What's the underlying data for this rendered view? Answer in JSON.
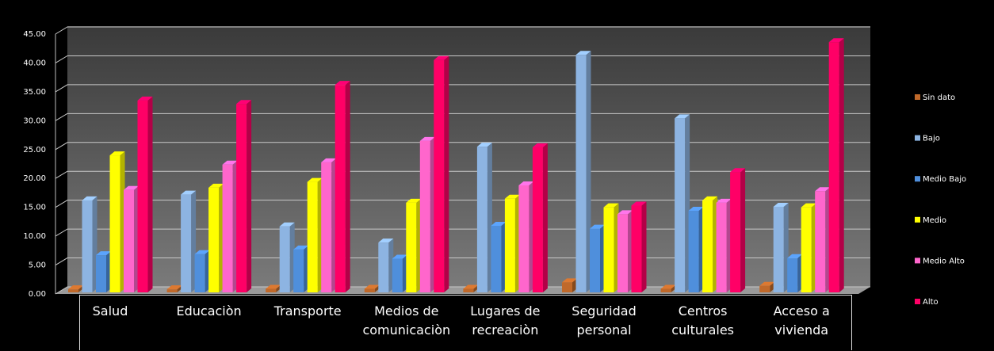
{
  "chart_data": {
    "type": "bar3d",
    "categories": [
      "Salud",
      "Educaciòn",
      "Transporte",
      "Medios de comunicaciòn",
      "Lugares de recreaciòn",
      "Seguridad personal",
      "Centros culturales",
      "Acceso a vivienda"
    ],
    "series": [
      {
        "name": "Sin dato",
        "color": "#c0692a",
        "values": [
          0.8,
          0.8,
          0.9,
          0.9,
          0.9,
          2.0,
          0.9,
          1.4
        ]
      },
      {
        "name": "Bajo",
        "color": "#8db4e2",
        "values": [
          16.2,
          17.2,
          11.7,
          8.9,
          25.5,
          41.4,
          30.4,
          15.1
        ]
      },
      {
        "name": "Medio Bajo",
        "color": "#4f8fdc",
        "values": [
          6.7,
          6.9,
          7.7,
          6.1,
          11.8,
          11.3,
          14.4,
          6.2
        ]
      },
      {
        "name": "Medio",
        "color": "#ffff00",
        "values": [
          24.0,
          18.4,
          19.4,
          15.8,
          16.5,
          15.0,
          16.2,
          15.0
        ]
      },
      {
        "name": "Medio Alto",
        "color": "#ff66cc",
        "values": [
          18.0,
          22.4,
          22.8,
          26.5,
          18.8,
          13.8,
          15.8,
          17.8
        ]
      },
      {
        "name": "Alto",
        "color": "#ff0066",
        "values": [
          33.5,
          32.9,
          36.2,
          40.5,
          25.4,
          15.3,
          21.1,
          43.6
        ]
      }
    ],
    "ylim": [
      0,
      45
    ],
    "yticks": [
      {
        "value": 0,
        "label": "0.00"
      },
      {
        "value": 5,
        "label": "5.00"
      },
      {
        "value": 10,
        "label": "10.00"
      },
      {
        "value": 15,
        "label": "15.00"
      },
      {
        "value": 20,
        "label": "20.00"
      },
      {
        "value": 25,
        "label": "25.00"
      },
      {
        "value": 30,
        "label": "30.00"
      },
      {
        "value": 35,
        "label": "35.00"
      },
      {
        "value": 40,
        "label": "40.00"
      },
      {
        "value": 45,
        "label": "45.00"
      }
    ],
    "grid": true,
    "legend": "right"
  }
}
